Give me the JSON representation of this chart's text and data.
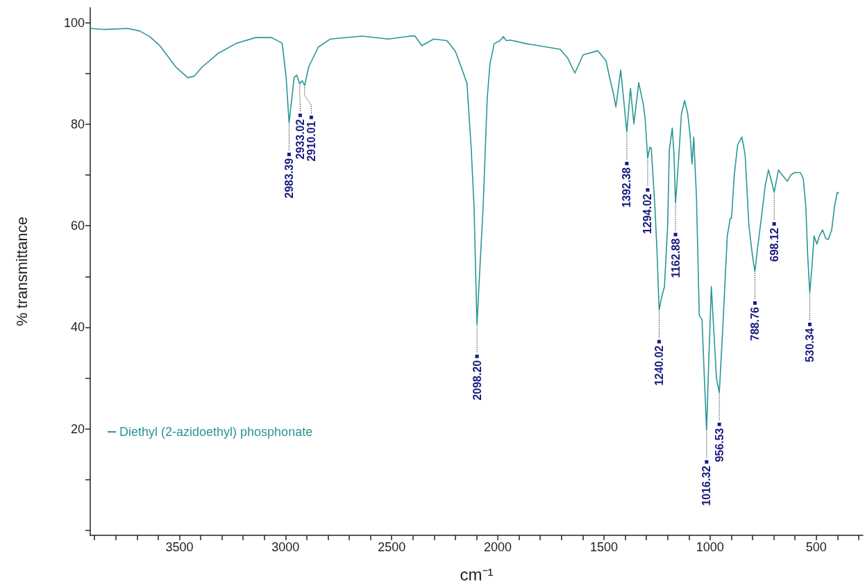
{
  "chart_data": {
    "type": "line",
    "xlabel": "cm⁻¹",
    "ylabel": "% transmittance",
    "xlim": [
      3920,
      280
    ],
    "ylim": [
      -1,
      103
    ],
    "xticks": [
      {
        "value": 3900,
        "label": null
      },
      {
        "value": 3800,
        "label": null
      },
      {
        "value": 3700,
        "label": null
      },
      {
        "value": 3600,
        "label": null
      },
      3500,
      {
        "value": 3400,
        "label": null
      },
      {
        "value": 3300,
        "label": null
      },
      {
        "value": 3200,
        "label": null
      },
      {
        "value": 3100,
        "label": null
      },
      3000,
      {
        "value": 2900,
        "label": null
      },
      {
        "value": 2800,
        "label": null
      },
      {
        "value": 2700,
        "label": null
      },
      {
        "value": 2600,
        "label": null
      },
      2500,
      {
        "value": 2400,
        "label": null
      },
      {
        "value": 2300,
        "label": null
      },
      {
        "value": 2200,
        "label": null
      },
      {
        "value": 2100,
        "label": null
      },
      2000,
      {
        "value": 1900,
        "label": null
      },
      {
        "value": 1800,
        "label": null
      },
      {
        "value": 1700,
        "label": null
      },
      {
        "value": 1600,
        "label": null
      },
      1500,
      {
        "value": 1400,
        "label": null
      },
      {
        "value": 1300,
        "label": null
      },
      {
        "value": 1200,
        "label": null
      },
      {
        "value": 1100,
        "label": null
      },
      1000,
      {
        "value": 900,
        "label": null
      },
      {
        "value": 800,
        "label": null
      },
      {
        "value": 700,
        "label": null
      },
      {
        "value": 600,
        "label": null
      },
      500,
      {
        "value": 400,
        "label": null
      },
      {
        "value": 300,
        "label": null
      }
    ],
    "yticks": [
      {
        "value": 0,
        "label": null
      },
      {
        "value": 10,
        "label": null
      },
      20,
      {
        "value": 30,
        "label": null
      },
      40,
      {
        "value": 50,
        "label": null
      },
      60,
      {
        "value": 70,
        "label": null
      },
      80,
      {
        "value": 90,
        "label": null
      },
      100
    ],
    "grid": false,
    "marker": "none",
    "line_style": "solid",
    "legend": "bottom left",
    "series": [
      {
        "name": "Diethyl (2-azidoethyl) phosphonate",
        "color": "#2a9595",
        "x": [
          3918,
          3850,
          3743,
          3687,
          3640,
          3592,
          3517,
          3461,
          3430,
          3393,
          3317,
          3230,
          3141,
          3066,
          3016,
          2997,
          2983.39,
          2968,
          2960,
          2947,
          2933.02,
          2921,
          2910.01,
          2891,
          2846,
          2790,
          2639,
          2515,
          2413,
          2390,
          2358,
          2302,
          2240,
          2200,
          2164,
          2145,
          2125,
          2112,
          2098.2,
          2084,
          2069,
          2050,
          2037,
          2017,
          1990,
          1974,
          1960,
          1940,
          1866,
          1706,
          1670,
          1637,
          1598,
          1529,
          1490,
          1470,
          1455,
          1444,
          1421,
          1405,
          1392.38,
          1375,
          1359,
          1336,
          1315,
          1306,
          1294.02,
          1284,
          1277,
          1260,
          1250,
          1240.02,
          1228,
          1215,
          1200,
          1192,
          1178,
          1170,
          1162.88,
          1150,
          1135,
          1120,
          1105,
          1094,
          1085,
          1077,
          1064,
          1051,
          1038,
          1025,
          1016.32,
          1005,
          994,
          970,
          956.53,
          940,
          919,
          905,
          899,
          886,
          870,
          850,
          835,
          817,
          800,
          788.76,
          775,
          760,
          740,
          725,
          712,
          698.12,
          678,
          660,
          636,
          620,
          602,
          575,
          561,
          549,
          540,
          530.34,
          520,
          510,
          497,
          485,
          470,
          455,
          443,
          427,
          414,
          401,
          395
        ],
        "values": [
          98.9,
          98.7,
          98.9,
          98.4,
          97.3,
          95.5,
          91.3,
          89.2,
          89.5,
          91.3,
          94,
          96,
          97.1,
          97.1,
          96,
          89.2,
          80.3,
          86,
          89.2,
          89.7,
          88,
          88.6,
          87.6,
          91.3,
          95.2,
          96.8,
          97.4,
          96.8,
          97.4,
          97.4,
          95.5,
          96.8,
          96.5,
          94.4,
          90.3,
          88,
          75,
          63.8,
          40.5,
          52,
          63.8,
          85,
          91.9,
          95.9,
          96.5,
          97.3,
          96.5,
          96.6,
          95.9,
          94.8,
          93,
          90.1,
          93.7,
          94.5,
          92.5,
          88.6,
          86,
          83.4,
          90.7,
          84,
          78.5,
          87.1,
          80.1,
          88.2,
          84,
          81.2,
          73.3,
          75.5,
          75.3,
          63.8,
          55,
          43.4,
          46,
          48,
          60,
          75,
          79.3,
          74,
          64.5,
          72,
          82,
          84.7,
          82,
          77.8,
          72.2,
          77.5,
          65.5,
          42.3,
          41.5,
          28,
          19.7,
          35,
          48,
          30,
          27.1,
          40,
          58,
          61.5,
          61.5,
          70,
          76,
          77.5,
          74,
          60,
          54,
          51,
          56,
          61,
          68,
          71,
          69,
          66.6,
          71,
          70,
          68.8,
          70,
          70.5,
          70.5,
          69.3,
          63.8,
          54,
          46.8,
          52,
          58,
          56.4,
          58,
          59.2,
          57.5,
          57.3,
          59.2,
          63.7,
          66.6,
          66.5
        ]
      }
    ],
    "annotations": [
      {
        "text": "2983.39",
        "x": 2983.39,
        "y": 80.3
      },
      {
        "text": "2933.02",
        "x": 2933.02,
        "y": 88
      },
      {
        "text": "2910.01",
        "x": 2910.01,
        "y": 87.6
      },
      {
        "text": "2098.20",
        "x": 2098.2,
        "y": 40.5
      },
      {
        "text": "1392.38",
        "x": 1392.38,
        "y": 78.5
      },
      {
        "text": "1294.02",
        "x": 1294.02,
        "y": 73.3
      },
      {
        "text": "1240.02",
        "x": 1240.02,
        "y": 43.4
      },
      {
        "text": "1162.88",
        "x": 1162.88,
        "y": 64.5
      },
      {
        "text": "1016.32",
        "x": 1016.32,
        "y": 19.7
      },
      {
        "text": "956.53",
        "x": 956.53,
        "y": 27.1
      },
      {
        "text": "788.76",
        "x": 788.76,
        "y": 51
      },
      {
        "text": "698.12",
        "x": 698.12,
        "y": 66.6
      },
      {
        "text": "530.34",
        "x": 530.34,
        "y": 46.8
      }
    ]
  }
}
